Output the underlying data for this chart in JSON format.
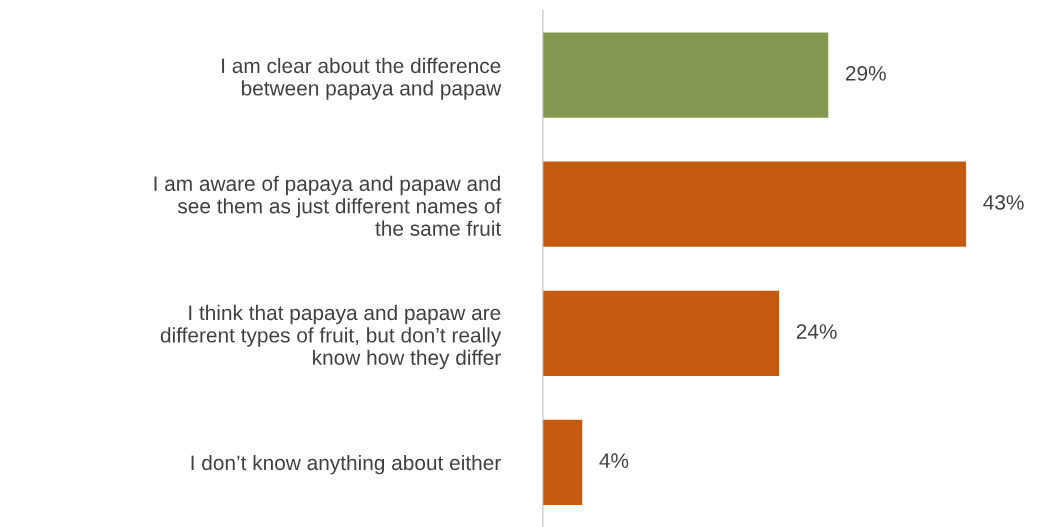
{
  "chart_data": {
    "type": "bar",
    "orientation": "horizontal",
    "categories": [
      "I am clear about the difference\nbetween papaya and papaw",
      "I am aware of papaya and papaw and\nsee them as just different names of\nthe same fruit",
      "I think that papaya and papaw are\ndifferent types of fruit, but don’t really\nknow how they differ",
      "I don’t know anything about either"
    ],
    "values": [
      29,
      43,
      24,
      4
    ],
    "colors": [
      "#84994f",
      "#c55a11",
      "#c55a11",
      "#c55a11"
    ],
    "value_labels": [
      "29%",
      "43%",
      "24%",
      "4%"
    ],
    "grid": false,
    "legend": false
  }
}
